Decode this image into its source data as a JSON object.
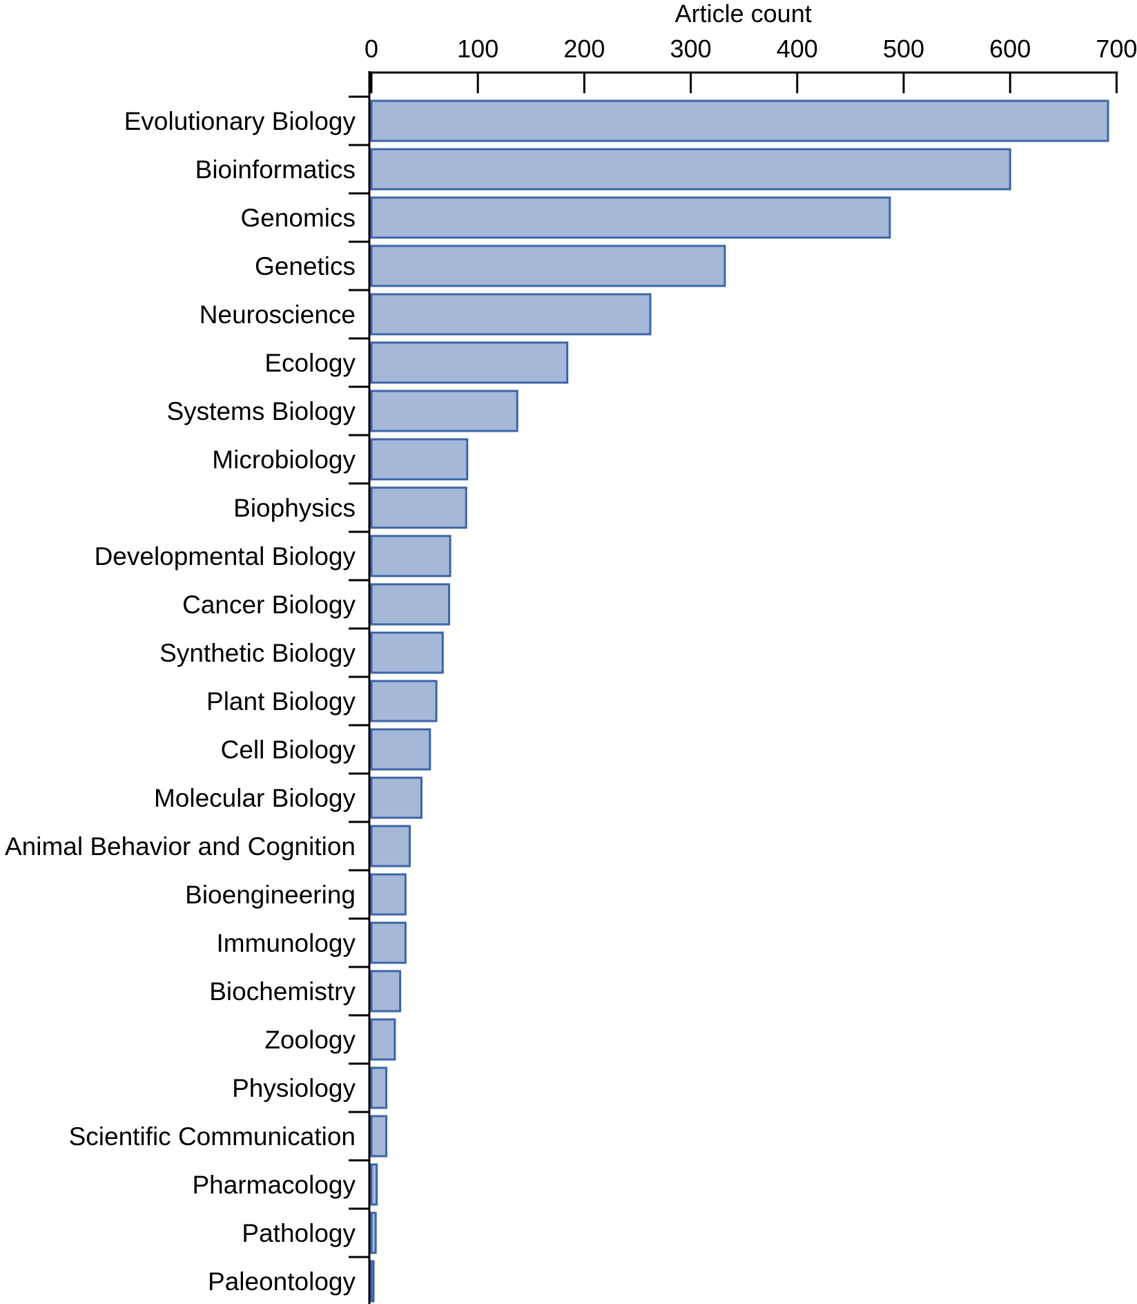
{
  "chart_data": {
    "type": "bar",
    "orientation": "horizontal",
    "xlabel": "Article count",
    "xlabel_position": "top",
    "xlim": [
      0,
      700
    ],
    "xticks": [
      0,
      100,
      200,
      300,
      400,
      500,
      600,
      700
    ],
    "grid": false,
    "bar_color": "#a5b8d8",
    "bar_edge_color": "#3d65a8",
    "categories": [
      "Evolutionary Biology",
      "Bioinformatics",
      "Genomics",
      "Genetics",
      "Neuroscience",
      "Ecology",
      "Systems Biology",
      "Microbiology",
      "Biophysics",
      "Developmental Biology",
      "Cancer Biology",
      "Synthetic Biology",
      "Plant Biology",
      "Cell Biology",
      "Molecular Biology",
      "Animal Behavior and Cognition",
      "Bioengineering",
      "Immunology",
      "Biochemistry",
      "Zoology",
      "Physiology",
      "Scientific Communication",
      "Pharmacology",
      "Pathology",
      "Paleontology"
    ],
    "values": [
      692,
      600,
      487,
      332,
      262,
      184,
      137,
      90,
      89,
      74,
      73,
      67,
      61,
      55,
      47,
      36,
      32,
      32,
      27,
      22,
      14,
      14,
      5,
      4,
      2
    ]
  }
}
